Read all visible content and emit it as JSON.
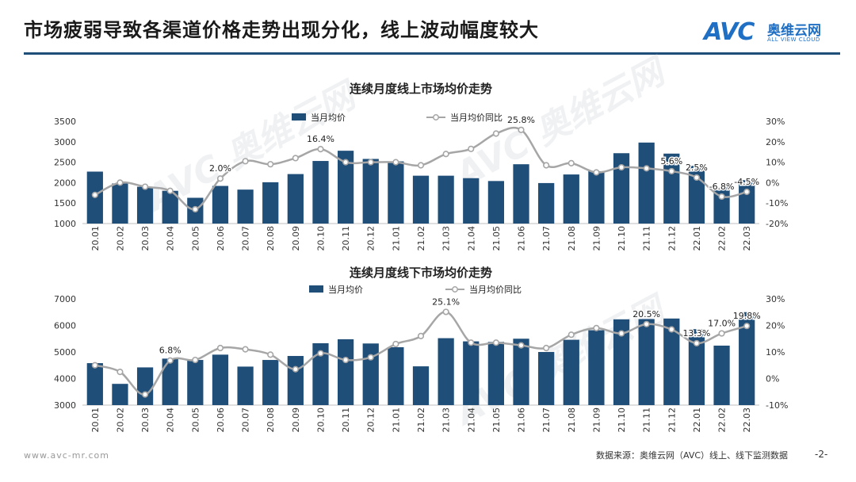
{
  "header": {
    "title": "市场疲弱导致各渠道价格走势出现分化，线上波动幅度较大",
    "logo_mark": "AVC",
    "logo_cn": "奥维云网",
    "logo_en": "ALL VIEW CLOUD"
  },
  "watermark": {
    "mark": "AVC",
    "cn": "奥维云网",
    "en": "ALL VIEW CLOUD"
  },
  "footer": {
    "url": "www.avc-mr.com",
    "source": "数据来源：奥维云网（AVC）线上、线下监测数据",
    "page": "-2-"
  },
  "colors": {
    "bar": "#1f4e79",
    "line": "#a6a6a6",
    "rule": "#1f4e79"
  },
  "chart_data": [
    {
      "type": "bar",
      "title": "连续月度线上市场均价走势",
      "categories": [
        "20.01",
        "20.02",
        "20.03",
        "20.04",
        "20.05",
        "20.06",
        "20.07",
        "20.08",
        "20.09",
        "20.10",
        "20.11",
        "20.12",
        "21.01",
        "21.02",
        "21.03",
        "21.04",
        "21.05",
        "21.06",
        "21.07",
        "21.08",
        "21.09",
        "21.10",
        "21.11",
        "21.12",
        "22.01",
        "22.02",
        "22.03"
      ],
      "series": [
        {
          "name": "当月均价",
          "kind": "bar",
          "axis": "left",
          "values": [
            2270,
            1980,
            1900,
            1800,
            1630,
            1920,
            1830,
            2010,
            2210,
            2530,
            2780,
            2580,
            2520,
            2170,
            2170,
            2110,
            2040,
            2450,
            1990,
            2200,
            2280,
            2720,
            2980,
            2710,
            2410,
            1890,
            2060
          ]
        },
        {
          "name": "当月均价同比",
          "kind": "line",
          "axis": "right",
          "values": [
            -6.0,
            0.0,
            -2.0,
            -4.0,
            -13.0,
            2.0,
            10.5,
            9.0,
            12.0,
            16.4,
            10.0,
            10.0,
            10.0,
            8.5,
            14.0,
            16.5,
            24.0,
            25.8,
            8.5,
            9.5,
            5.0,
            7.5,
            7.0,
            5.6,
            2.5,
            -6.8,
            -4.5
          ]
        }
      ],
      "data_labels": [
        {
          "index": 5,
          "text": "2.0%"
        },
        {
          "index": 9,
          "text": "16.4%"
        },
        {
          "index": 17,
          "text": "25.8%"
        },
        {
          "index": 23,
          "text": "5.6%"
        },
        {
          "index": 24,
          "text": "2.5%"
        },
        {
          "index": 25,
          "text": "-6.8%"
        },
        {
          "index": 26,
          "text": "-4.5%"
        }
      ],
      "ylim": [
        1000,
        3500
      ],
      "yticks": [
        "1000",
        "1500",
        "2000",
        "2500",
        "3000",
        "3500"
      ],
      "ylim_right": [
        -20,
        30
      ],
      "yticks_right": [
        "-20%",
        "-10%",
        "0%",
        "10%",
        "20%",
        "30%"
      ],
      "legend": "top"
    },
    {
      "type": "bar",
      "title": "连续月度线下市场均价走势",
      "categories": [
        "20.01",
        "20.02",
        "20.03",
        "20.04",
        "20.05",
        "20.06",
        "20.07",
        "20.08",
        "20.09",
        "20.10",
        "20.11",
        "20.12",
        "21.01",
        "21.02",
        "21.03",
        "21.04",
        "21.05",
        "21.06",
        "21.07",
        "21.08",
        "21.09",
        "21.10",
        "21.11",
        "21.12",
        "22.01",
        "22.02",
        "22.03"
      ],
      "series": [
        {
          "name": "当月均价",
          "kind": "bar",
          "axis": "left",
          "values": [
            4580,
            3800,
            4420,
            4750,
            4700,
            4900,
            4450,
            4700,
            4850,
            5330,
            5480,
            5320,
            5180,
            4460,
            5520,
            5400,
            5380,
            5500,
            5000,
            5460,
            5820,
            6230,
            6240,
            6260,
            5860,
            5240,
            6500
          ]
        },
        {
          "name": "当月均价同比",
          "kind": "line",
          "axis": "right",
          "values": [
            5.0,
            2.5,
            -6.0,
            6.8,
            7.0,
            11.5,
            11.0,
            9.0,
            3.5,
            9.5,
            7.0,
            8.0,
            13.0,
            16.0,
            25.1,
            13.5,
            13.5,
            12.5,
            11.5,
            16.5,
            19.0,
            17.0,
            20.5,
            18.5,
            13.3,
            17.0,
            19.8
          ]
        }
      ],
      "data_labels": [
        {
          "index": 3,
          "text": "6.8%"
        },
        {
          "index": 14,
          "text": "25.1%"
        },
        {
          "index": 22,
          "text": "20.5%"
        },
        {
          "index": 24,
          "text": "13.3%"
        },
        {
          "index": 25,
          "text": "17.0%"
        },
        {
          "index": 26,
          "text": "19.8%"
        }
      ],
      "ylim": [
        3000,
        7000
      ],
      "yticks": [
        "3000",
        "4000",
        "5000",
        "6000",
        "7000"
      ],
      "ylim_right": [
        -10,
        30
      ],
      "yticks_right": [
        "-10%",
        "0%",
        "10%",
        "20%",
        "30%"
      ],
      "legend": "top"
    }
  ]
}
